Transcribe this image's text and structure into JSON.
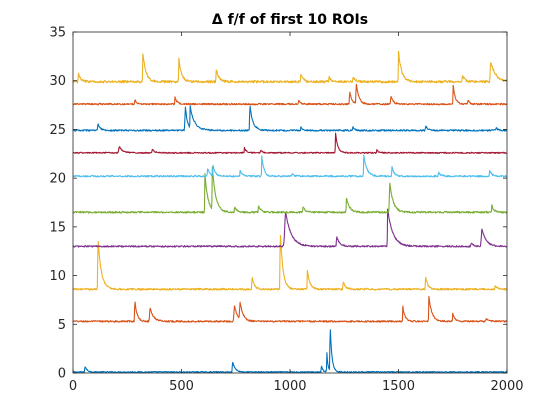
{
  "chart_data": {
    "type": "line",
    "title": "Δ f/f of first 10 ROIs",
    "xlabel": "",
    "ylabel": "",
    "xlim": [
      0,
      2000
    ],
    "ylim": [
      0,
      35
    ],
    "xticks": [
      0,
      500,
      1000,
      1500,
      2000
    ],
    "yticks": [
      0,
      5,
      10,
      15,
      20,
      25,
      30,
      35
    ],
    "grid": false,
    "box": true,
    "series": [
      {
        "color": "#0072BD",
        "baseline": 0.1,
        "noise": 0.06,
        "peaks": [
          [
            55,
            0.6,
            1,
            10
          ],
          [
            735,
            1.1,
            1,
            12
          ],
          [
            1145,
            0.7,
            1,
            6
          ],
          [
            1170,
            2.0,
            1,
            5
          ],
          [
            1185,
            4.8,
            1,
            8
          ]
        ]
      },
      {
        "color": "#D95319",
        "baseline": 5.3,
        "noise": 0.08,
        "peaks": [
          [
            285,
            2.2,
            1,
            10
          ],
          [
            355,
            1.4,
            2,
            16
          ],
          [
            745,
            1.6,
            3,
            14
          ],
          [
            770,
            1.7,
            2,
            14
          ],
          [
            1520,
            1.5,
            1,
            10
          ],
          [
            1640,
            2.6,
            1,
            14
          ],
          [
            1750,
            0.8,
            1,
            10
          ],
          [
            1905,
            0.3,
            2,
            12
          ]
        ]
      },
      {
        "color": "#EDB120",
        "baseline": 8.6,
        "noise": 0.09,
        "peaks": [
          [
            115,
            5.3,
            1,
            15
          ],
          [
            825,
            1.3,
            1,
            10
          ],
          [
            955,
            6.1,
            1,
            12
          ],
          [
            1080,
            1.9,
            1,
            12
          ],
          [
            1245,
            0.8,
            1,
            10
          ],
          [
            1625,
            1.3,
            1,
            10
          ],
          [
            1945,
            0.4,
            1,
            10
          ]
        ]
      },
      {
        "color": "#7E2F8E",
        "baseline": 13.0,
        "noise": 0.08,
        "peaks": [
          [
            980,
            3.5,
            4,
            26
          ],
          [
            1215,
            1.1,
            1,
            12
          ],
          [
            1450,
            3.8,
            1,
            24
          ],
          [
            1835,
            0.4,
            1,
            10
          ],
          [
            1885,
            1.8,
            3,
            18
          ]
        ]
      },
      {
        "color": "#77AC30",
        "baseline": 16.5,
        "noise": 0.09,
        "peaks": [
          [
            608,
            3.9,
            1,
            14
          ],
          [
            642,
            4.3,
            1,
            16
          ],
          [
            745,
            0.6,
            1,
            10
          ],
          [
            855,
            0.7,
            1,
            10
          ],
          [
            1060,
            0.6,
            1,
            10
          ],
          [
            1260,
            1.5,
            1,
            14
          ],
          [
            1460,
            3.0,
            2,
            16
          ],
          [
            1930,
            0.7,
            1,
            10
          ]
        ]
      },
      {
        "color": "#4DBEEE",
        "baseline": 20.2,
        "noise": 0.08,
        "peaks": [
          [
            620,
            0.8,
            1,
            10
          ],
          [
            645,
            1.1,
            1,
            10
          ],
          [
            770,
            0.6,
            1,
            10
          ],
          [
            870,
            2.1,
            1,
            10
          ],
          [
            1010,
            0.3,
            1,
            8
          ],
          [
            1340,
            2.2,
            1,
            14
          ],
          [
            1470,
            1.0,
            1,
            10
          ],
          [
            1685,
            0.4,
            1,
            10
          ],
          [
            1920,
            0.6,
            1,
            10
          ]
        ]
      },
      {
        "color": "#A2142F",
        "baseline": 22.6,
        "noise": 0.06,
        "peaks": [
          [
            215,
            0.6,
            4,
            16
          ],
          [
            365,
            0.4,
            1,
            10
          ],
          [
            790,
            0.5,
            1,
            10
          ],
          [
            865,
            0.3,
            1,
            8
          ],
          [
            1210,
            2.0,
            1,
            10
          ],
          [
            1400,
            0.3,
            1,
            8
          ]
        ]
      },
      {
        "color": "#0072BD",
        "baseline": 24.9,
        "noise": 0.08,
        "peaks": [
          [
            115,
            0.7,
            1,
            10
          ],
          [
            518,
            2.4,
            2,
            10
          ],
          [
            540,
            2.2,
            1,
            22
          ],
          [
            815,
            2.6,
            1,
            14
          ],
          [
            1050,
            0.3,
            1,
            8
          ],
          [
            1290,
            0.3,
            1,
            8
          ],
          [
            1625,
            0.5,
            1,
            10
          ],
          [
            1950,
            0.3,
            1,
            8
          ]
        ]
      },
      {
        "color": "#D95319",
        "baseline": 27.6,
        "noise": 0.08,
        "peaks": [
          [
            285,
            0.5,
            1,
            8
          ],
          [
            470,
            0.7,
            1,
            10
          ],
          [
            1040,
            0.4,
            1,
            8
          ],
          [
            1275,
            1.3,
            1,
            10
          ],
          [
            1305,
            2.1,
            1,
            12
          ],
          [
            1465,
            0.9,
            1,
            10
          ],
          [
            1752,
            1.9,
            1,
            10
          ],
          [
            1820,
            0.4,
            1,
            8
          ]
        ]
      },
      {
        "color": "#EDB120",
        "baseline": 29.9,
        "noise": 0.12,
        "peaks": [
          [
            25,
            0.9,
            1,
            10
          ],
          [
            322,
            2.9,
            1,
            14
          ],
          [
            488,
            2.3,
            1,
            12
          ],
          [
            660,
            1.3,
            1,
            12
          ],
          [
            1050,
            0.8,
            1,
            10
          ],
          [
            1180,
            0.5,
            1,
            10
          ],
          [
            1290,
            0.5,
            1,
            10
          ],
          [
            1500,
            3.1,
            1,
            14
          ],
          [
            1795,
            0.7,
            1,
            10
          ],
          [
            1925,
            2.1,
            2,
            22
          ]
        ]
      }
    ]
  }
}
